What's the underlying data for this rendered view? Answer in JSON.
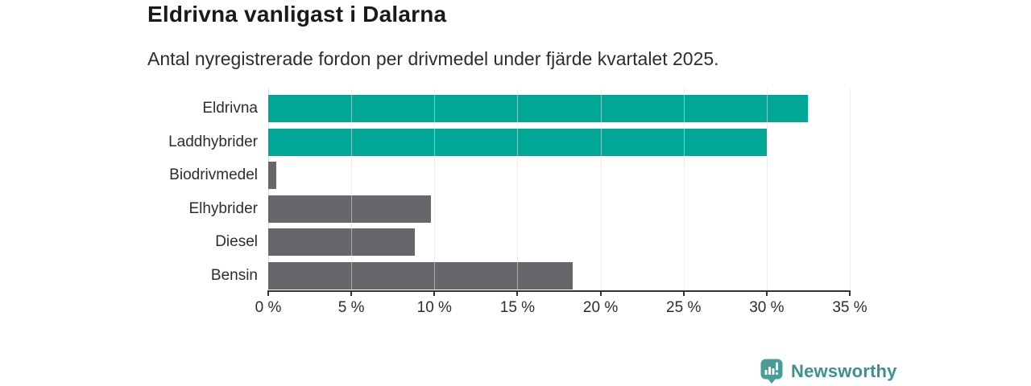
{
  "header": {
    "title": "Eldrivna vanligast i Dalarna",
    "subtitle": "Antal nyregistrerade fordon per drivmedel under fjärde kvartalet 2025."
  },
  "chart_data": {
    "type": "bar",
    "orientation": "horizontal",
    "title": "Eldrivna vanligast i Dalarna",
    "subtitle": "Antal nyregistrerade fordon per drivmedel under fjärde kvartalet 2025.",
    "categories": [
      "Eldrivna",
      "Laddhybrider",
      "Biodrivmedel",
      "Elhybrider",
      "Diesel",
      "Bensin"
    ],
    "values": [
      32.5,
      30.0,
      0.5,
      9.8,
      8.8,
      18.3
    ],
    "unit": "%",
    "bar_colors": [
      "#00A797",
      "#00A797",
      "#67676B",
      "#67676B",
      "#67676B",
      "#67676B"
    ],
    "highlight_color": "#00A797",
    "default_color": "#67676B",
    "xlim": [
      0,
      35
    ],
    "x_ticks": [
      0,
      5,
      10,
      15,
      20,
      25,
      30,
      35
    ],
    "x_tick_labels": [
      "0 %",
      "5 %",
      "10 %",
      "15 %",
      "20 %",
      "25 %",
      "30 %",
      "35 %"
    ],
    "grid": "vertical",
    "gridline_color": "#e0e0e0",
    "axis_color": "#333333",
    "legend": "none"
  },
  "footer": {
    "brand": "Newsworthy",
    "brand_color": "#3d918b",
    "icon": "newsworthy-bar-chart-bubble-icon",
    "icon_color": "#4A9D96"
  }
}
